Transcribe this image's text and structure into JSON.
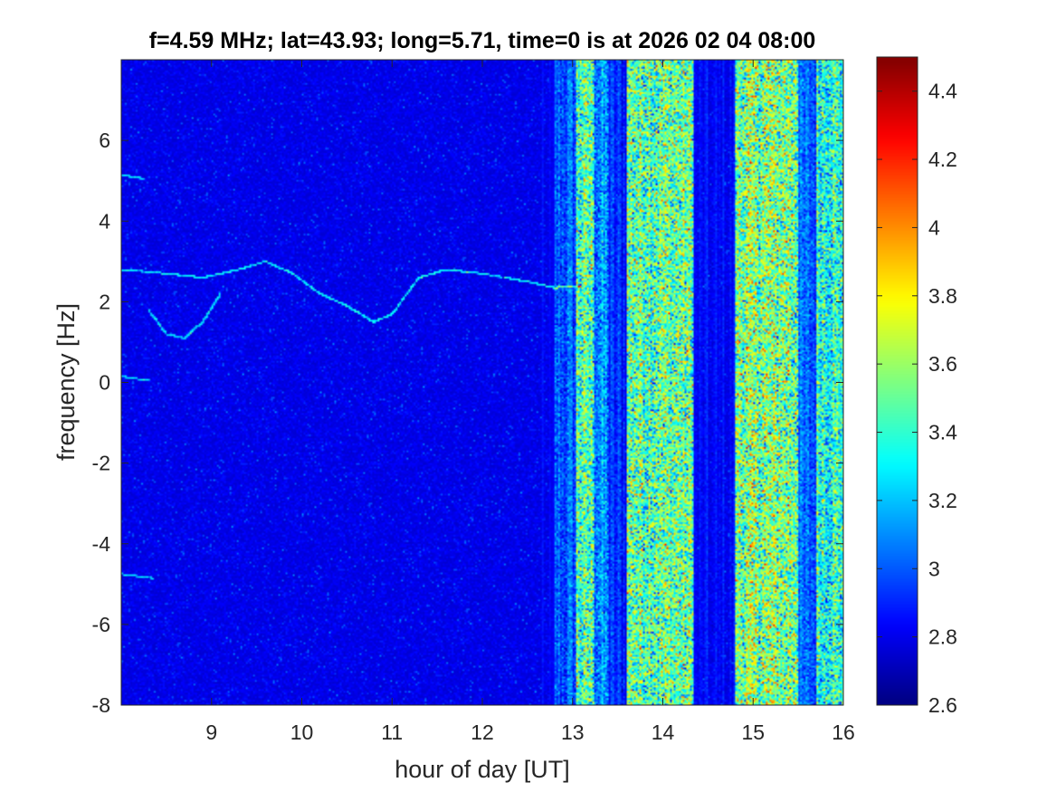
{
  "chart_data": {
    "type": "heatmap",
    "title": "f=4.59 MHz;  lat=43.93; long=5.71, time=0 is at 2026 02 04 08:00",
    "xlabel": "hour of day [UT]",
    "ylabel": "frequency [Hz]",
    "xlim": [
      8,
      16
    ],
    "ylim": [
      -8,
      8
    ],
    "x_ticks": [
      9,
      10,
      11,
      12,
      13,
      14,
      15,
      16
    ],
    "y_ticks": [
      -8,
      -6,
      -4,
      -2,
      0,
      2,
      4,
      6
    ],
    "colorbar": {
      "colormap": "jet",
      "clim": [
        2.6,
        4.5
      ],
      "ticks": [
        "2.6",
        "2.8",
        "3",
        "3.2",
        "3.4",
        "3.6",
        "3.8",
        "4",
        "4.2",
        "4.4"
      ]
    },
    "background_level": 2.75,
    "activity_bands": [
      {
        "x": [
          12.8,
          13.05
        ],
        "level": 3.0
      },
      {
        "x": [
          13.05,
          13.25
        ],
        "level": 3.45
      },
      {
        "x": [
          13.25,
          13.4
        ],
        "level": 3.1
      },
      {
        "x": [
          13.4,
          13.6
        ],
        "level": 2.9
      },
      {
        "x": [
          13.6,
          14.35
        ],
        "level": 3.5
      },
      {
        "x": [
          14.35,
          14.8
        ],
        "level": 2.8
      },
      {
        "x": [
          14.8,
          15.5
        ],
        "level": 3.55
      },
      {
        "x": [
          15.5,
          15.7
        ],
        "level": 3.0
      },
      {
        "x": [
          15.7,
          16.0
        ],
        "level": 3.4
      }
    ],
    "trace_points": [
      [
        8.0,
        2.8
      ],
      [
        8.5,
        2.7
      ],
      [
        8.9,
        2.6
      ],
      [
        9.3,
        2.8
      ],
      [
        9.6,
        3.0
      ],
      [
        9.9,
        2.7
      ],
      [
        10.2,
        2.2
      ],
      [
        10.5,
        1.9
      ],
      [
        10.8,
        1.5
      ],
      [
        11.0,
        1.7
      ],
      [
        11.3,
        2.6
      ],
      [
        11.6,
        2.8
      ],
      [
        12.0,
        2.7
      ],
      [
        12.5,
        2.5
      ],
      [
        12.8,
        2.35
      ],
      [
        13.1,
        2.4
      ]
    ],
    "minor_traces": [
      {
        "points": [
          [
            8.3,
            1.8
          ],
          [
            8.5,
            1.2
          ],
          [
            8.7,
            1.1
          ],
          [
            8.9,
            1.5
          ],
          [
            9.1,
            2.2
          ]
        ]
      },
      {
        "points": [
          [
            8.0,
            5.15
          ],
          [
            8.25,
            5.05
          ]
        ]
      },
      {
        "points": [
          [
            8.0,
            0.15
          ],
          [
            8.3,
            0.05
          ]
        ]
      },
      {
        "points": [
          [
            8.0,
            -4.75
          ],
          [
            8.35,
            -4.85
          ]
        ]
      }
    ]
  }
}
